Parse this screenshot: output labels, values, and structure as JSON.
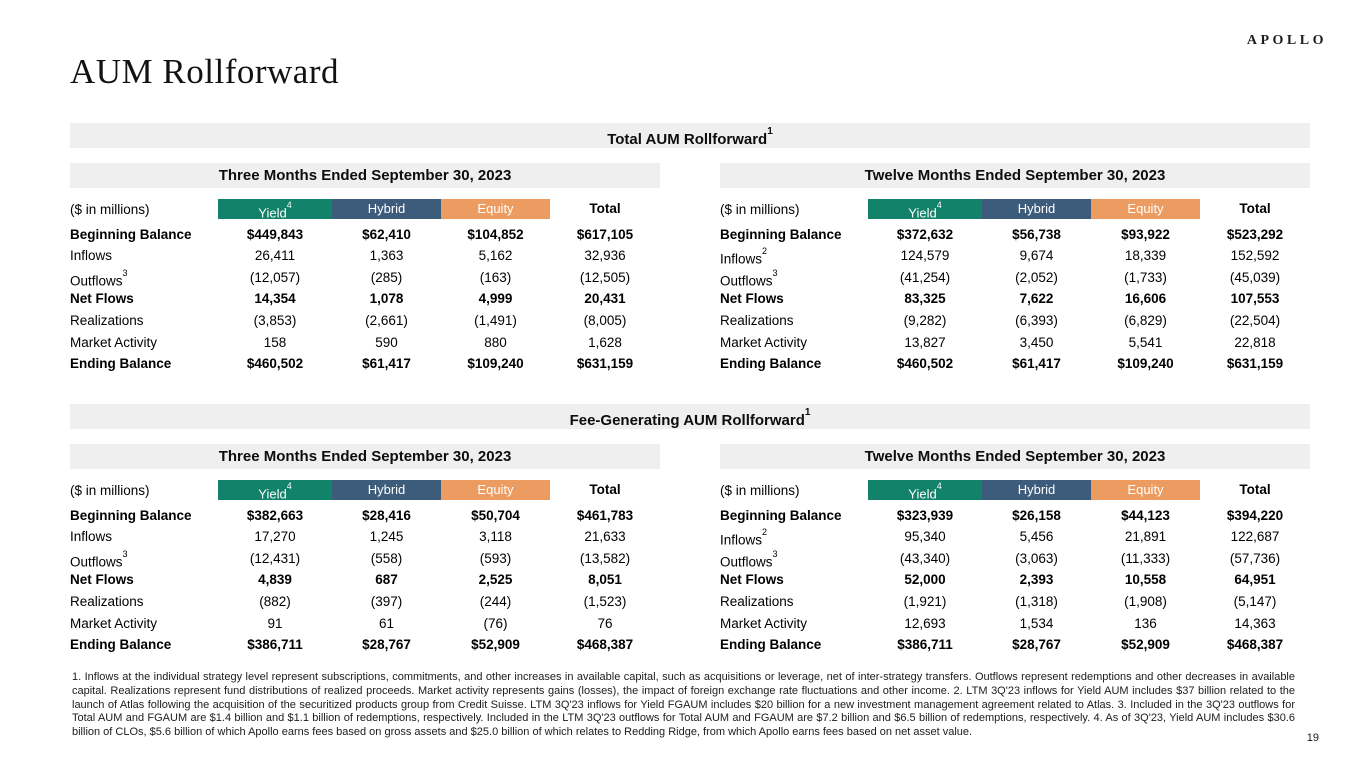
{
  "brand": "APOLLO",
  "page_title": "AUM Rollforward",
  "page_number": "19",
  "colors": {
    "yield": "#12826A",
    "hybrid": "#3D5B7B",
    "equity": "#EC9C60",
    "band": "#EFEFEF"
  },
  "sections": [
    {
      "title": "Total AUM Rollforward",
      "title_sup": "1",
      "tables": [
        {
          "period": "Three Months Ended September 30, 2023",
          "unit_label": "($ in millions)",
          "columns": [
            {
              "label": "Yield",
              "sup": "4",
              "color_key": "yield"
            },
            {
              "label": "Hybrid",
              "color_key": "hybrid"
            },
            {
              "label": "Equity",
              "color_key": "equity"
            },
            {
              "label": "Total"
            }
          ],
          "rows": [
            {
              "label": "Beginning Balance",
              "bold": true,
              "cells": [
                "$449,843",
                "$62,410",
                "$104,852",
                "$617,105"
              ]
            },
            {
              "label": "Inflows",
              "cells": [
                "26,411",
                "1,363",
                "5,162",
                "32,936"
              ]
            },
            {
              "label": "Outflows",
              "sup": "3",
              "cells": [
                "(12,057)",
                "(285)",
                "(163)",
                "(12,505)"
              ]
            },
            {
              "label": "Net Flows",
              "bold": true,
              "cells": [
                "14,354",
                "1,078",
                "4,999",
                "20,431"
              ]
            },
            {
              "label": "Realizations",
              "cells": [
                "(3,853)",
                "(2,661)",
                "(1,491)",
                "(8,005)"
              ]
            },
            {
              "label": "Market Activity",
              "cells": [
                "158",
                "590",
                "880",
                "1,628"
              ]
            },
            {
              "label": "Ending Balance",
              "bold": true,
              "cells": [
                "$460,502",
                "$61,417",
                "$109,240",
                "$631,159"
              ]
            }
          ]
        },
        {
          "period": "Twelve Months Ended September 30, 2023",
          "unit_label": "($ in millions)",
          "columns": [
            {
              "label": "Yield",
              "sup": "4",
              "color_key": "yield"
            },
            {
              "label": "Hybrid",
              "color_key": "hybrid"
            },
            {
              "label": "Equity",
              "color_key": "equity"
            },
            {
              "label": "Total"
            }
          ],
          "rows": [
            {
              "label": "Beginning Balance",
              "bold": true,
              "cells": [
                "$372,632",
                "$56,738",
                "$93,922",
                "$523,292"
              ]
            },
            {
              "label": "Inflows",
              "sup": "2",
              "cells": [
                "124,579",
                "9,674",
                "18,339",
                "152,592"
              ]
            },
            {
              "label": "Outflows",
              "sup": "3",
              "cells": [
                "(41,254)",
                "(2,052)",
                "(1,733)",
                "(45,039)"
              ]
            },
            {
              "label": "Net Flows",
              "bold": true,
              "cells": [
                "83,325",
                "7,622",
                "16,606",
                "107,553"
              ]
            },
            {
              "label": "Realizations",
              "cells": [
                "(9,282)",
                "(6,393)",
                "(6,829)",
                "(22,504)"
              ]
            },
            {
              "label": "Market Activity",
              "cells": [
                "13,827",
                "3,450",
                "5,541",
                "22,818"
              ]
            },
            {
              "label": "Ending Balance",
              "bold": true,
              "cells": [
                "$460,502",
                "$61,417",
                "$109,240",
                "$631,159"
              ]
            }
          ]
        }
      ]
    },
    {
      "title": "Fee-Generating AUM Rollforward",
      "title_sup": "1",
      "tables": [
        {
          "period": "Three Months Ended September 30, 2023",
          "unit_label": "($ in millions)",
          "columns": [
            {
              "label": "Yield",
              "sup": "4",
              "color_key": "yield"
            },
            {
              "label": "Hybrid",
              "color_key": "hybrid"
            },
            {
              "label": "Equity",
              "color_key": "equity"
            },
            {
              "label": "Total"
            }
          ],
          "rows": [
            {
              "label": "Beginning Balance",
              "bold": true,
              "cells": [
                "$382,663",
                "$28,416",
                "$50,704",
                "$461,783"
              ]
            },
            {
              "label": "Inflows",
              "cells": [
                "17,270",
                "1,245",
                "3,118",
                "21,633"
              ]
            },
            {
              "label": "Outflows",
              "sup": "3",
              "cells": [
                "(12,431)",
                "(558)",
                "(593)",
                "(13,582)"
              ]
            },
            {
              "label": "Net Flows",
              "bold": true,
              "cells": [
                "4,839",
                "687",
                "2,525",
                "8,051"
              ]
            },
            {
              "label": "Realizations",
              "cells": [
                "(882)",
                "(397)",
                "(244)",
                "(1,523)"
              ]
            },
            {
              "label": "Market Activity",
              "cells": [
                "91",
                "61",
                "(76)",
                "76"
              ]
            },
            {
              "label": "Ending Balance",
              "bold": true,
              "cells": [
                "$386,711",
                "$28,767",
                "$52,909",
                "$468,387"
              ]
            }
          ]
        },
        {
          "period": "Twelve Months Ended September 30, 2023",
          "unit_label": "($ in millions)",
          "columns": [
            {
              "label": "Yield",
              "sup": "4",
              "color_key": "yield"
            },
            {
              "label": "Hybrid",
              "color_key": "hybrid"
            },
            {
              "label": "Equity",
              "color_key": "equity"
            },
            {
              "label": "Total"
            }
          ],
          "rows": [
            {
              "label": "Beginning Balance",
              "bold": true,
              "cells": [
                "$323,939",
                "$26,158",
                "$44,123",
                "$394,220"
              ]
            },
            {
              "label": "Inflows",
              "sup": "2",
              "cells": [
                "95,340",
                "5,456",
                "21,891",
                "122,687"
              ]
            },
            {
              "label": "Outflows",
              "sup": "3",
              "cells": [
                "(43,340)",
                "(3,063)",
                "(11,333)",
                "(57,736)"
              ]
            },
            {
              "label": "Net Flows",
              "bold": true,
              "cells": [
                "52,000",
                "2,393",
                "10,558",
                "64,951"
              ]
            },
            {
              "label": "Realizations",
              "cells": [
                "(1,921)",
                "(1,318)",
                "(1,908)",
                "(5,147)"
              ]
            },
            {
              "label": "Market Activity",
              "cells": [
                "12,693",
                "1,534",
                "136",
                "14,363"
              ]
            },
            {
              "label": "Ending Balance",
              "bold": true,
              "cells": [
                "$386,711",
                "$28,767",
                "$52,909",
                "$468,387"
              ]
            }
          ]
        }
      ]
    }
  ],
  "footnotes": "1. Inflows at the individual strategy level represent subscriptions, commitments, and other increases in available capital, such as acquisitions or leverage, net of inter-strategy transfers. Outflows represent redemptions and other decreases in available capital. Realizations represent fund distributions of realized proceeds. Market activity represents gains (losses), the impact of foreign exchange rate fluctuations and other income. 2. LTM 3Q'23 inflows for Yield AUM includes $37 billion related to the launch of Atlas following the acquisition of the securitized products group from Credit Suisse. LTM 3Q'23 inflows for Yield FGAUM includes $20 billion for a new investment management agreement related to Atlas. 3. Included in the 3Q'23 outflows for Total AUM and FGAUM are $1.4 billion and $1.1 billion of redemptions, respectively. Included in the LTM 3Q'23 outflows for Total AUM and FGAUM are $7.2 billion and $6.5 billion of redemptions, respectively. 4. As of 3Q'23, Yield AUM includes $30.6 billion of CLOs, $5.6 billion of which Apollo earns fees based on gross assets and $25.0 billion of which relates to Redding Ridge, from which Apollo earns fees based on net asset value."
}
